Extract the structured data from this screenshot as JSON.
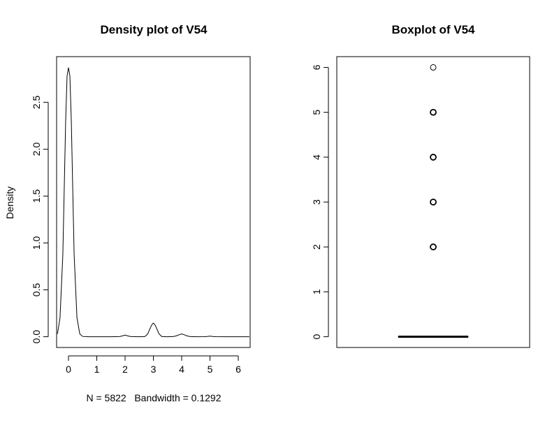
{
  "chart_data": [
    {
      "type": "line",
      "title": "Density plot of V54",
      "xlabel": "N = 5822   Bandwidth = 0.1292",
      "ylabel": "Density",
      "xlim": [
        -0.42,
        6.42
      ],
      "ylim": [
        -0.1149,
        2.987
      ],
      "xticks": [
        0,
        1,
        2,
        3,
        4,
        5,
        6
      ],
      "yticks": [
        0.0,
        0.5,
        1.0,
        1.5,
        2.0,
        2.5
      ],
      "xtick_labels": [
        "0",
        "1",
        "2",
        "3",
        "4",
        "5",
        "6"
      ],
      "ytick_labels": [
        "0.0",
        "0.5",
        "1.0",
        "1.5",
        "2.0",
        "2.5"
      ],
      "grid": false,
      "series": [
        {
          "x": [
            -0.39,
            -0.3,
            -0.2,
            -0.15,
            -0.1,
            -0.05,
            0.0,
            0.05,
            0.1,
            0.15,
            0.2,
            0.3,
            0.4,
            0.5,
            0.7,
            1.0,
            1.5,
            1.8,
            1.9,
            2.0,
            2.1,
            2.2,
            2.5,
            2.7,
            2.8,
            2.9,
            2.95,
            3.0,
            3.05,
            3.1,
            3.2,
            3.3,
            3.5,
            3.7,
            3.8,
            3.9,
            4.0,
            4.1,
            4.2,
            4.3,
            4.5,
            4.8,
            4.9,
            5.0,
            5.1,
            5.2,
            5.5,
            6.0,
            6.39
          ],
          "y": [
            0.03,
            0.2,
            0.87,
            1.58,
            2.3,
            2.78,
            2.87,
            2.78,
            2.3,
            1.58,
            0.87,
            0.2,
            0.03,
            0.003,
            0.0,
            0.0,
            0.0,
            0.002,
            0.008,
            0.017,
            0.008,
            0.002,
            0.0,
            0.002,
            0.03,
            0.1,
            0.13,
            0.145,
            0.13,
            0.1,
            0.03,
            0.002,
            0.0,
            0.002,
            0.008,
            0.02,
            0.03,
            0.02,
            0.008,
            0.002,
            0.0,
            0.001,
            0.003,
            0.006,
            0.003,
            0.001,
            0.0,
            0.0,
            0.0
          ]
        }
      ]
    },
    {
      "type": "boxplot",
      "title": "Boxplot of V54",
      "ylim": [
        -0.24,
        6.24
      ],
      "yticks": [
        0,
        1,
        2,
        3,
        4,
        5,
        6
      ],
      "ytick_labels": [
        "0",
        "1",
        "2",
        "3",
        "4",
        "5",
        "6"
      ],
      "grid": false,
      "box": {
        "min": 0,
        "q1": 0,
        "median": 0,
        "q3": 0,
        "max": 0
      },
      "outliers": [
        2,
        3,
        4,
        5,
        6
      ]
    }
  ]
}
